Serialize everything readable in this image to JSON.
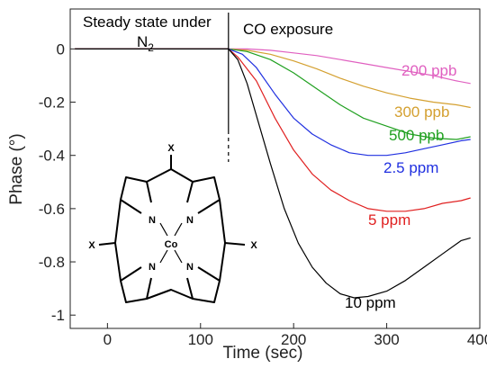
{
  "chart_data": {
    "type": "line",
    "title": "",
    "xlabel": "Time (sec)",
    "ylabel": "Phase (°)",
    "xlim": [
      -40,
      400
    ],
    "ylim": [
      -1.05,
      0.15
    ],
    "x_ticks": [
      0,
      100,
      200,
      300,
      400
    ],
    "y_ticks": [
      0,
      -0.2,
      -0.4,
      -0.6,
      -0.8,
      -1
    ],
    "x_tick_labels": [
      "0",
      "100",
      "200",
      "300",
      "400"
    ],
    "y_tick_labels": [
      "0",
      "-0.2",
      "-0.4",
      "-0.6",
      "-0.8",
      "-1"
    ],
    "grid": false,
    "legend": "none",
    "annotations": {
      "left_region_line1": "Steady state under",
      "left_region_n": "N",
      "left_region_sub": "2",
      "right_region": "CO exposure",
      "event_x": 130
    },
    "molecule": {
      "metal": "Co",
      "nitrogen": "N",
      "substituent": "X"
    },
    "series": [
      {
        "name": "200 ppb",
        "color": "#e060c0",
        "x": [
          -35,
          0,
          50,
          100,
          130,
          150,
          175,
          200,
          225,
          250,
          275,
          300,
          325,
          350,
          375,
          390
        ],
        "y": [
          0,
          0,
          0,
          0,
          0,
          0,
          -0.005,
          -0.015,
          -0.025,
          -0.04,
          -0.055,
          -0.07,
          -0.085,
          -0.1,
          -0.12,
          -0.13
        ]
      },
      {
        "name": "300 ppb",
        "color": "#d4a030",
        "x": [
          -35,
          0,
          50,
          100,
          130,
          150,
          175,
          200,
          225,
          250,
          275,
          300,
          325,
          350,
          375,
          390
        ],
        "y": [
          0,
          0,
          0,
          0,
          0,
          -0.005,
          -0.02,
          -0.045,
          -0.075,
          -0.11,
          -0.14,
          -0.165,
          -0.185,
          -0.2,
          -0.21,
          -0.22
        ]
      },
      {
        "name": "500 ppb",
        "color": "#20a020",
        "x": [
          -35,
          0,
          50,
          100,
          130,
          150,
          175,
          200,
          225,
          250,
          275,
          300,
          325,
          350,
          375,
          390
        ],
        "y": [
          0,
          0,
          0,
          0,
          0,
          -0.01,
          -0.04,
          -0.09,
          -0.15,
          -0.21,
          -0.26,
          -0.29,
          -0.32,
          -0.335,
          -0.34,
          -0.33
        ]
      },
      {
        "name": "2.5 ppm",
        "color": "#2030e0",
        "x": [
          -35,
          0,
          50,
          100,
          130,
          145,
          160,
          180,
          200,
          220,
          240,
          260,
          280,
          300,
          320,
          340,
          360,
          380,
          390
        ],
        "y": [
          0,
          0,
          0,
          0,
          0,
          -0.02,
          -0.07,
          -0.17,
          -0.26,
          -0.32,
          -0.36,
          -0.39,
          -0.4,
          -0.4,
          -0.39,
          -0.375,
          -0.36,
          -0.345,
          -0.34
        ]
      },
      {
        "name": "5 ppm",
        "color": "#e02020",
        "x": [
          -35,
          0,
          50,
          100,
          130,
          140,
          160,
          180,
          200,
          220,
          240,
          260,
          280,
          300,
          320,
          340,
          360,
          380,
          390
        ],
        "y": [
          0,
          0,
          0,
          0,
          0,
          -0.03,
          -0.12,
          -0.26,
          -0.38,
          -0.47,
          -0.53,
          -0.57,
          -0.6,
          -0.61,
          -0.61,
          -0.6,
          -0.58,
          -0.57,
          -0.56
        ]
      },
      {
        "name": "10 ppm",
        "color": "#000000",
        "x": [
          -35,
          0,
          50,
          100,
          130,
          140,
          150,
          160,
          175,
          190,
          205,
          220,
          235,
          250,
          265,
          280,
          300,
          320,
          340,
          360,
          380,
          390
        ],
        "y": [
          0,
          0,
          0,
          0,
          0,
          -0.04,
          -0.13,
          -0.25,
          -0.43,
          -0.6,
          -0.73,
          -0.82,
          -0.88,
          -0.92,
          -0.935,
          -0.93,
          -0.91,
          -0.87,
          -0.82,
          -0.77,
          -0.72,
          -0.71
        ]
      }
    ]
  }
}
